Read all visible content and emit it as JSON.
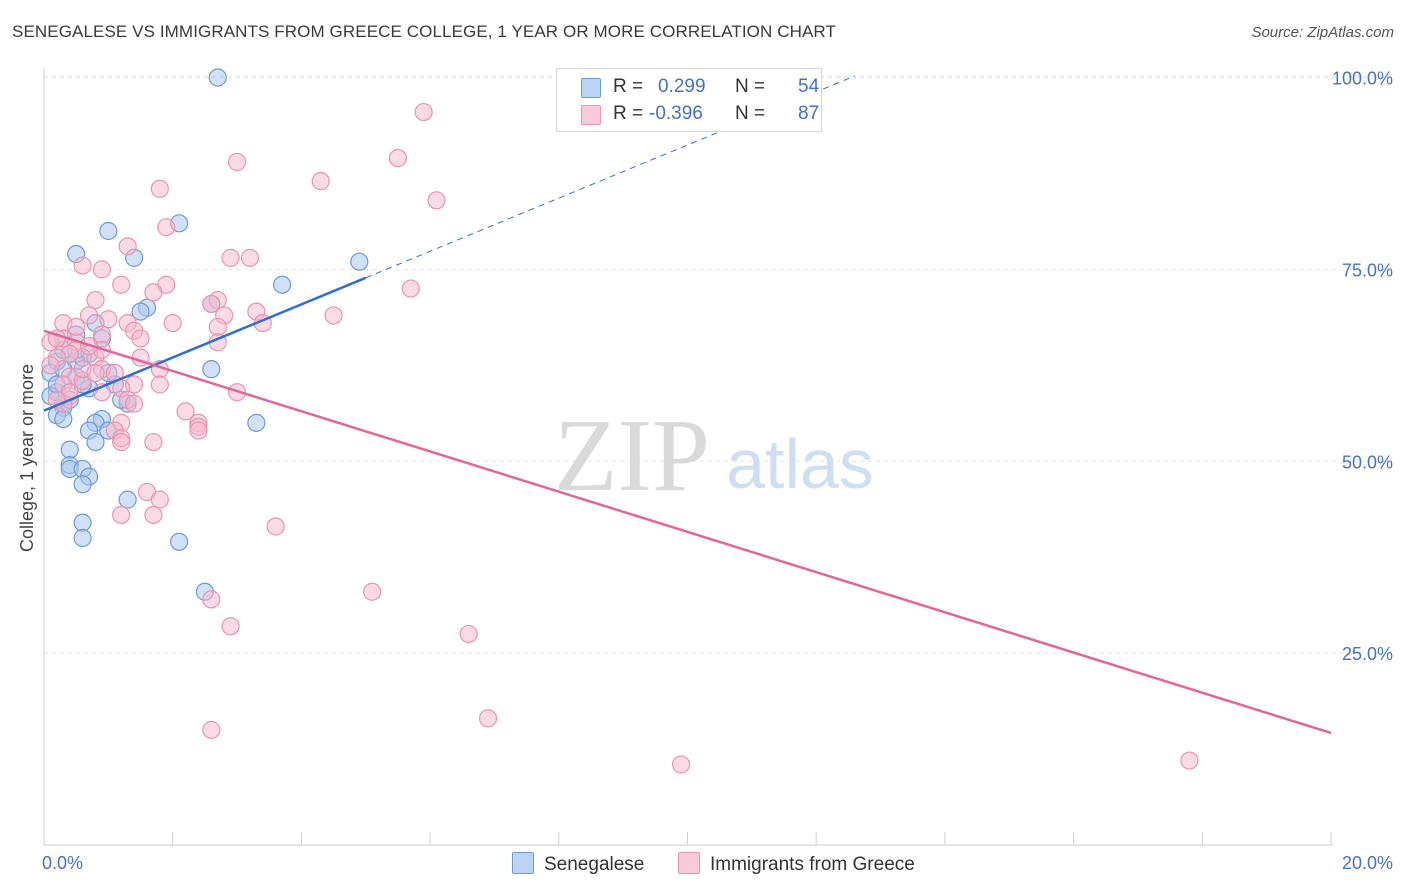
{
  "title": "SENEGALESE VS IMMIGRANTS FROM GREECE COLLEGE, 1 YEAR OR MORE CORRELATION CHART",
  "source": "Source: ZipAtlas.com",
  "watermark": {
    "zip": "ZIP",
    "atlas": "atlas"
  },
  "colors": {
    "blue_fill": "#a9c6ef",
    "blue_stroke": "#6f9ad8",
    "blue_line": "#2e6fcf",
    "pink_fill": "#f6b8cb",
    "pink_stroke": "#e994b0",
    "pink_line": "#e0669a",
    "axis_label": "#4472c4"
  },
  "legend": {
    "rows": [
      {
        "r_label": "R =",
        "r_value": "0.299",
        "n_label": "N =",
        "n_value": "54"
      },
      {
        "r_label": "R =",
        "r_value": "-0.396",
        "n_label": "N =",
        "n_value": "87"
      }
    ],
    "bottom": [
      "Senegalese",
      "Immigrants from Greece"
    ]
  },
  "chart_data": {
    "type": "scatter",
    "xlabel": "",
    "ylabel": "College, 1 year or more",
    "xlim": [
      0,
      20
    ],
    "ylim": [
      0,
      104
    ],
    "x_tick_labels": [
      "0.0%",
      "20.0%"
    ],
    "y_tick_values": [
      25,
      50,
      75,
      100
    ],
    "y_tick_labels": [
      "25.0%",
      "50.0%",
      "75.0%",
      "100.0%"
    ],
    "grid": true,
    "series": [
      {
        "name": "Senegalese",
        "r": 0.299,
        "n": 54,
        "trend": {
          "x": [
            0,
            5.0,
            12.6
          ],
          "y": [
            56.6,
            73.9,
            100.2
          ],
          "solid_until": 5.0
        },
        "points": [
          [
            2.7,
            100
          ],
          [
            2.1,
            81
          ],
          [
            1.0,
            80
          ],
          [
            0.5,
            77
          ],
          [
            1.4,
            76.5
          ],
          [
            4.9,
            76
          ],
          [
            3.7,
            73
          ],
          [
            2.6,
            70.5
          ],
          [
            1.6,
            70
          ],
          [
            1.5,
            69.5
          ],
          [
            0.8,
            68
          ],
          [
            0.5,
            66.5
          ],
          [
            0.7,
            64
          ],
          [
            0.2,
            63
          ],
          [
            0.5,
            63
          ],
          [
            0.6,
            63.5
          ],
          [
            0.1,
            61.5
          ],
          [
            2.6,
            62
          ],
          [
            0.5,
            61
          ],
          [
            1.1,
            60
          ],
          [
            0.7,
            59.5
          ],
          [
            0.2,
            59
          ],
          [
            0.1,
            58.5
          ],
          [
            1.3,
            57.5
          ],
          [
            0.3,
            57.5
          ],
          [
            0.3,
            57
          ],
          [
            0.2,
            56
          ],
          [
            0.3,
            55.5
          ],
          [
            0.9,
            55.5
          ],
          [
            3.3,
            55
          ],
          [
            0.8,
            55
          ],
          [
            0.7,
            54
          ],
          [
            1.0,
            54
          ],
          [
            0.8,
            52.5
          ],
          [
            0.4,
            51.5
          ],
          [
            0.4,
            49.5
          ],
          [
            0.4,
            49
          ],
          [
            0.6,
            49
          ],
          [
            0.7,
            48
          ],
          [
            0.6,
            47
          ],
          [
            1.3,
            45
          ],
          [
            0.6,
            42
          ],
          [
            0.6,
            40
          ],
          [
            2.1,
            39.5
          ],
          [
            2.5,
            33
          ],
          [
            0.3,
            62
          ],
          [
            0.4,
            64
          ],
          [
            0.2,
            60
          ],
          [
            1.2,
            58
          ],
          [
            0.9,
            66
          ],
          [
            0.4,
            58
          ],
          [
            0.6,
            60
          ],
          [
            0.3,
            64.5
          ],
          [
            1.0,
            61.5
          ]
        ]
      },
      {
        "name": "Immigrants from Greece",
        "r": -0.396,
        "n": 87,
        "trend": {
          "x": [
            0,
            20
          ],
          "y": [
            67.0,
            14.6
          ],
          "solid_until": 20
        },
        "points": [
          [
            5.9,
            95.5
          ],
          [
            5.5,
            89.5
          ],
          [
            3.0,
            89
          ],
          [
            4.3,
            86.5
          ],
          [
            1.8,
            85.5
          ],
          [
            6.1,
            84
          ],
          [
            1.9,
            80.5
          ],
          [
            1.3,
            78
          ],
          [
            2.9,
            76.5
          ],
          [
            3.2,
            76.5
          ],
          [
            0.6,
            75.5
          ],
          [
            0.9,
            75
          ],
          [
            1.2,
            73
          ],
          [
            1.9,
            73
          ],
          [
            5.7,
            72.5
          ],
          [
            1.7,
            72
          ],
          [
            0.8,
            71
          ],
          [
            2.7,
            71
          ],
          [
            2.6,
            70.5
          ],
          [
            3.3,
            69.5
          ],
          [
            0.7,
            69
          ],
          [
            2.8,
            69
          ],
          [
            4.5,
            69
          ],
          [
            1.0,
            68.5
          ],
          [
            1.3,
            68
          ],
          [
            3.4,
            68
          ],
          [
            0.3,
            68
          ],
          [
            2.0,
            68
          ],
          [
            2.7,
            67.5
          ],
          [
            1.4,
            67
          ],
          [
            0.9,
            66.5
          ],
          [
            0.3,
            66
          ],
          [
            0.5,
            65.5
          ],
          [
            1.5,
            66
          ],
          [
            2.7,
            65.5
          ],
          [
            0.1,
            65.5
          ],
          [
            0.5,
            64.5
          ],
          [
            0.4,
            64
          ],
          [
            0.2,
            63.5
          ],
          [
            0.8,
            63.5
          ],
          [
            1.5,
            63.5
          ],
          [
            0.1,
            62.5
          ],
          [
            0.9,
            62
          ],
          [
            1.8,
            62
          ],
          [
            0.4,
            61
          ],
          [
            0.6,
            60.5
          ],
          [
            1.4,
            60
          ],
          [
            1.8,
            60
          ],
          [
            0.3,
            60
          ],
          [
            1.2,
            59.5
          ],
          [
            0.9,
            59
          ],
          [
            3.0,
            59
          ],
          [
            0.4,
            58.5
          ],
          [
            1.3,
            58
          ],
          [
            1.4,
            57.5
          ],
          [
            2.2,
            56.5
          ],
          [
            1.2,
            55
          ],
          [
            2.4,
            55
          ],
          [
            2.4,
            54.5
          ],
          [
            1.1,
            54
          ],
          [
            2.4,
            54
          ],
          [
            1.2,
            53
          ],
          [
            1.2,
            52.5
          ],
          [
            1.7,
            52.5
          ],
          [
            1.6,
            46
          ],
          [
            1.8,
            45
          ],
          [
            1.2,
            43
          ],
          [
            1.7,
            43
          ],
          [
            3.6,
            41.5
          ],
          [
            5.1,
            33
          ],
          [
            2.6,
            32
          ],
          [
            2.9,
            28.5
          ],
          [
            6.6,
            27.5
          ],
          [
            6.9,
            16.5
          ],
          [
            2.6,
            15
          ],
          [
            9.9,
            10.5
          ],
          [
            17.8,
            11
          ],
          [
            0.2,
            66
          ],
          [
            0.5,
            67.5
          ],
          [
            0.6,
            62
          ],
          [
            0.9,
            64.5
          ],
          [
            1.1,
            61.5
          ],
          [
            0.3,
            57.5
          ],
          [
            0.4,
            59
          ],
          [
            0.7,
            65
          ],
          [
            0.2,
            58
          ],
          [
            0.8,
            61.5
          ]
        ]
      }
    ]
  }
}
